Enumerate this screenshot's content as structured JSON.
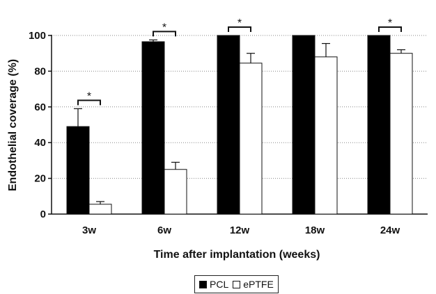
{
  "chart_data": {
    "type": "bar",
    "categories": [
      "3w",
      "6w",
      "12w",
      "18w",
      "24w"
    ],
    "series": [
      {
        "name": "PCL",
        "values": [
          49,
          96.5,
          100,
          100,
          100
        ],
        "errors": [
          10,
          1,
          0,
          0,
          0
        ],
        "color": "#000000"
      },
      {
        "name": "ePTFE",
        "values": [
          5.5,
          25,
          84.5,
          88,
          90
        ],
        "errors": [
          1.5,
          4,
          5.5,
          7.5,
          2
        ],
        "color": "#ffffff"
      }
    ],
    "significance": [
      true,
      true,
      true,
      false,
      true
    ],
    "significance_symbol": "*",
    "xlabel": "Time after implantation (weeks)",
    "ylabel": "Endothelial coverage (%)",
    "ylim": [
      0,
      100
    ],
    "yticks": [
      0,
      20,
      40,
      60,
      80,
      100
    ],
    "grid": "horizontal dotted",
    "legend_position": "bottom-center"
  }
}
